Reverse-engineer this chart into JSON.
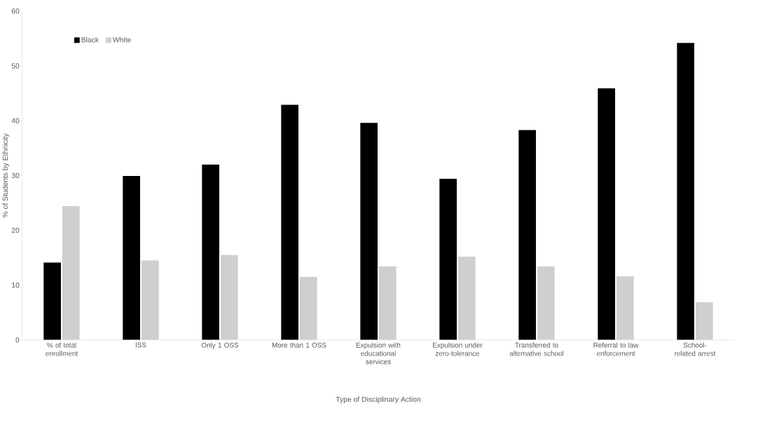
{
  "chart_data": {
    "type": "bar",
    "xlabel": "Type of Disciplinary Action",
    "ylabel": "% of Students by Ethnicity",
    "categories": [
      "% of total enrollment",
      "ISS",
      "Only 1 OSS",
      "More than 1 OSS",
      "Expulsion with educational services",
      "Expulsion under zero-tolerance",
      "Transferred to alternative school",
      "Referral to law enforcement",
      "School-related arrest"
    ],
    "series": [
      {
        "name": "Black",
        "color": "#000000",
        "values": [
          14.1,
          29.9,
          32.0,
          42.9,
          39.6,
          29.4,
          38.3,
          45.9,
          54.2
        ]
      },
      {
        "name": "White",
        "color": "#d0cece",
        "values": [
          24.4,
          14.5,
          15.5,
          11.5,
          13.4,
          15.2,
          13.4,
          11.6,
          6.9
        ]
      }
    ],
    "ylim": [
      0,
      60
    ],
    "yticks": [
      0,
      10,
      20,
      30,
      40,
      50,
      60
    ],
    "legend": "top left"
  }
}
